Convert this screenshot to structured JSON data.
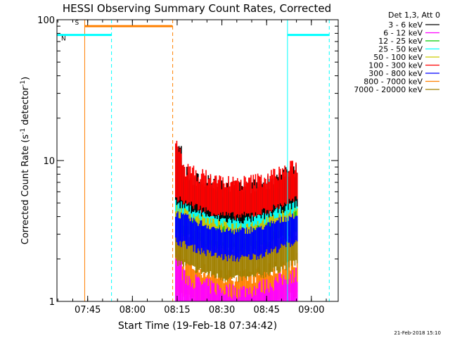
{
  "chart_data": {
    "type": "line",
    "title": "HESSI Observing Summary Count Rates, Corrected",
    "xlabel": "Start Time (19-Feb-18 07:34:42)",
    "ylabel_main": "Corrected Count Rate (s",
    "ylabel_sup1": "-1",
    "ylabel_mid": " detector",
    "ylabel_sup2": "-1",
    "ylabel_end": ")",
    "yscale": "log",
    "ylim": [
      1,
      100
    ],
    "xlim": [
      "07:34:42",
      "09:09:00"
    ],
    "x_ticks": [
      "07:45",
      "08:00",
      "08:15",
      "08:30",
      "08:45",
      "09:00"
    ],
    "y_ticks": [
      "1",
      "10",
      "100"
    ],
    "legend_title": "Det 1,3, Att 0",
    "legend_position": "right",
    "legend": [
      {
        "label": "3 - 6 keV",
        "color": "#000000"
      },
      {
        "label": "6 - 12 keV",
        "color": "#ff00ff"
      },
      {
        "label": "12 - 25 keV",
        "color": "#00cc00"
      },
      {
        "label": "25 - 50 keV",
        "color": "#00ffff"
      },
      {
        "label": "50 - 100 keV",
        "color": "#cccc00"
      },
      {
        "label": "100 - 300 keV",
        "color": "#ff0000"
      },
      {
        "label": "300 - 800 keV",
        "color": "#0000ff"
      },
      {
        "label": "800 - 7000 keV",
        "color": "#ff8000"
      },
      {
        "label": "7000 - 20000 keV",
        "color": "#a08000"
      }
    ],
    "flags": [
      {
        "label": "S",
        "color": "#ff8000",
        "start": "07:44:00",
        "end": "08:13:30",
        "level": 90
      },
      {
        "label": "N",
        "color": "#00ffff",
        "start": "07:34:42",
        "end": "07:53:00",
        "level": 78
      },
      {
        "label": "",
        "color": "#00ffff",
        "start": "08:52:00",
        "end": "09:06:00",
        "level": 78
      }
    ],
    "markers": [
      {
        "time": "07:44:00",
        "color": "#ff8000",
        "style": "solid"
      },
      {
        "time": "07:53:00",
        "color": "#00ffff",
        "style": "dashed"
      },
      {
        "time": "08:13:30",
        "color": "#ff8000",
        "style": "dashed"
      },
      {
        "time": "08:52:00",
        "color": "#00ffff",
        "style": "solid"
      },
      {
        "time": "09:06:00",
        "color": "#00ffff",
        "style": "dashed"
      }
    ],
    "data_span": [
      "08:14:30",
      "08:55:30"
    ],
    "series": [
      {
        "name": "3 - 6 keV",
        "color": "#000000",
        "approx_level": 6.5
      },
      {
        "name": "6 - 12 keV",
        "color": "#ff00ff",
        "approx_level": 1.2
      },
      {
        "name": "12 - 25 keV",
        "color": "#00cc00",
        "approx_level": 4.0
      },
      {
        "name": "25 - 50 keV",
        "color": "#00ffff",
        "approx_level": 6.0
      },
      {
        "name": "50 - 100 keV",
        "color": "#cccc00",
        "approx_level": 5.5
      },
      {
        "name": "100 - 300 keV",
        "color": "#ff0000",
        "approx_level": 7.0
      },
      {
        "name": "300 - 800 keV",
        "color": "#0000ff",
        "approx_level": 3.5
      },
      {
        "name": "800 - 7000 keV",
        "color": "#ff8000",
        "approx_level": 1.5
      },
      {
        "name": "7000 - 20000 keV",
        "color": "#a08000",
        "approx_level": 2.5
      }
    ],
    "footer_date": "21-Feb-2018 15:10"
  }
}
